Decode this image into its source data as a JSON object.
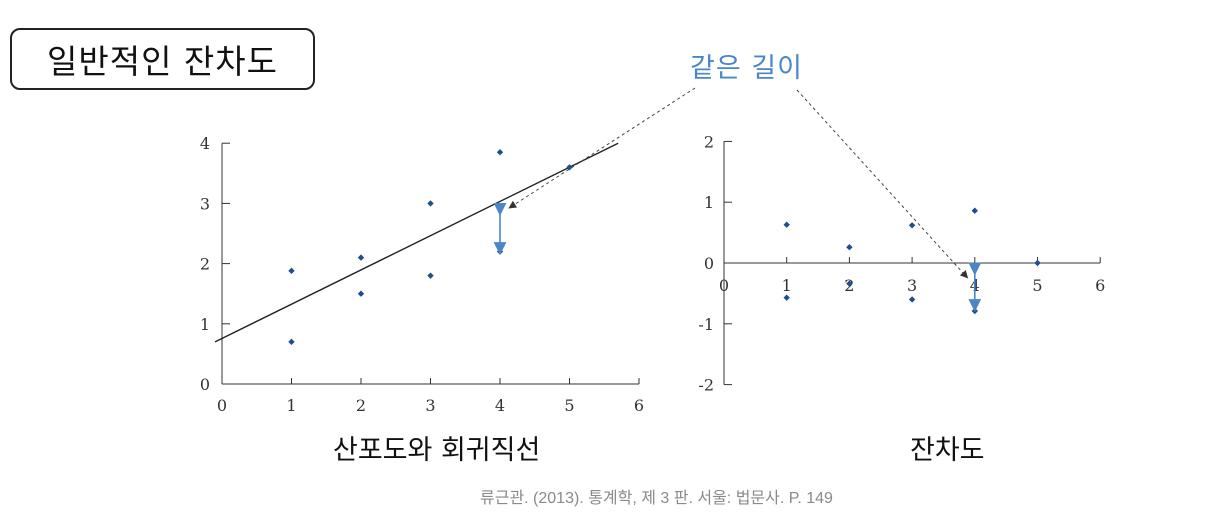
{
  "title": "일반적인 잔차도",
  "annotation": "같은 길이",
  "source": "류근관. (2013). 통계학, 제 3 판. 서울: 법문사. P. 149",
  "colors": {
    "points": "#1f4e8c",
    "arrow": "#4a86c8",
    "annotation": "#4a86c8",
    "line": "#222222"
  },
  "chart_data": [
    {
      "type": "scatter",
      "title": "산포도와 회귀직선",
      "xlim": [
        0,
        6
      ],
      "ylim": [
        0,
        4
      ],
      "xticks": [
        "0",
        "1",
        "2",
        "3",
        "4",
        "5",
        "6"
      ],
      "yticks": [
        "0",
        "1",
        "2",
        "3",
        "4"
      ],
      "points": [
        {
          "x": 1,
          "y": 1.88
        },
        {
          "x": 1,
          "y": 0.7
        },
        {
          "x": 2,
          "y": 2.1
        },
        {
          "x": 2,
          "y": 1.5
        },
        {
          "x": 3,
          "y": 3.0
        },
        {
          "x": 3,
          "y": 1.8
        },
        {
          "x": 4,
          "y": 3.85
        },
        {
          "x": 4,
          "y": 2.2
        },
        {
          "x": 5,
          "y": 3.6
        }
      ],
      "regression_line": {
        "x0": -0.1,
        "y0": 0.7,
        "x1": 5.7,
        "y1": 4.0
      },
      "residual_arrow": {
        "x": 4,
        "y_from": 2.9,
        "y_to": 2.25
      }
    },
    {
      "type": "scatter",
      "title": "잔차도",
      "xlim": [
        0,
        6
      ],
      "ylim": [
        -2,
        2
      ],
      "xticks": [
        "0",
        "1",
        "2",
        "3",
        "4",
        "5",
        "6"
      ],
      "yticks": [
        "-2",
        "-1",
        "0",
        "1",
        "2"
      ],
      "points": [
        {
          "x": 1,
          "y": 0.63
        },
        {
          "x": 1,
          "y": -0.57
        },
        {
          "x": 2,
          "y": 0.26
        },
        {
          "x": 2,
          "y": -0.34
        },
        {
          "x": 3,
          "y": 0.62
        },
        {
          "x": 3,
          "y": -0.6
        },
        {
          "x": 4,
          "y": 0.86
        },
        {
          "x": 4,
          "y": -0.79
        },
        {
          "x": 5,
          "y": 0.0
        }
      ],
      "residual_arrow": {
        "x": 4,
        "y_from": -0.1,
        "y_to": -0.7
      }
    }
  ]
}
